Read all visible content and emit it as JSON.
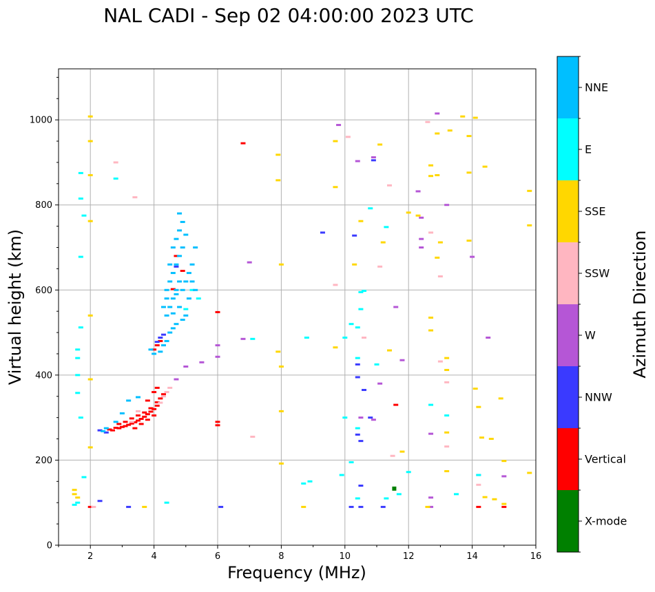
{
  "chart_data": {
    "type": "scatter",
    "title": "NAL CADI - Sep 02 04:00:00 2023 UTC",
    "xlabel": "Frequency (MHz)",
    "ylabel": "Virtual height (km)",
    "xlim": [
      1,
      16
    ],
    "ylim": [
      0,
      1120
    ],
    "xticks": [
      2,
      4,
      6,
      8,
      10,
      12,
      14,
      16
    ],
    "yticks": [
      0,
      200,
      400,
      600,
      800,
      1000
    ],
    "grid": true,
    "colorbar": {
      "label": "Azimuth Direction",
      "categories": [
        {
          "name": "X-mode",
          "color": "#008000"
        },
        {
          "name": "Vertical",
          "color": "#ff0000"
        },
        {
          "name": "NNW",
          "color": "#3a3aff"
        },
        {
          "name": "W",
          "color": "#b556d6"
        },
        {
          "name": "SSW",
          "color": "#ffb6c1"
        },
        {
          "name": "SSE",
          "color": "#ffd700"
        },
        {
          "name": "E",
          "color": "#00ffff"
        },
        {
          "name": "NNE",
          "color": "#00bfff"
        }
      ]
    },
    "series": [
      {
        "name": "X-mode",
        "points": [
          [
            11.55,
            133
          ]
        ]
      },
      {
        "name": "Vertical",
        "points": [
          [
            2.6,
            272
          ],
          [
            2.7,
            270
          ],
          [
            2.8,
            276
          ],
          [
            2.9,
            275
          ],
          [
            3.0,
            278
          ],
          [
            3.1,
            280
          ],
          [
            3.2,
            283
          ],
          [
            3.3,
            286
          ],
          [
            3.4,
            289
          ],
          [
            3.5,
            293
          ],
          [
            3.6,
            297
          ],
          [
            3.7,
            302
          ],
          [
            3.8,
            308
          ],
          [
            3.9,
            314
          ],
          [
            4.0,
            320
          ],
          [
            4.1,
            328
          ],
          [
            2.9,
            285
          ],
          [
            3.1,
            290
          ],
          [
            3.3,
            298
          ],
          [
            3.5,
            305
          ],
          [
            3.7,
            312
          ],
          [
            3.9,
            322
          ],
          [
            4.1,
            336
          ],
          [
            3.4,
            275
          ],
          [
            3.6,
            285
          ],
          [
            3.8,
            295
          ],
          [
            4.0,
            305
          ],
          [
            4.2,
            345
          ],
          [
            4.0,
            360
          ],
          [
            3.8,
            340
          ],
          [
            4.1,
            370
          ],
          [
            4.3,
            355
          ],
          [
            4.0,
            460
          ],
          [
            4.1,
            470
          ],
          [
            4.2,
            480
          ],
          [
            4.7,
            680
          ],
          [
            4.9,
            645
          ],
          [
            4.6,
            602
          ],
          [
            6.0,
            548
          ],
          [
            6.0,
            290
          ],
          [
            6.0,
            282
          ],
          [
            6.8,
            945
          ],
          [
            15.0,
            90
          ],
          [
            14.2,
            90
          ],
          [
            2.0,
            90
          ],
          [
            11.6,
            330
          ]
        ]
      },
      {
        "name": "NNW",
        "points": [
          [
            2.3,
            270
          ],
          [
            2.5,
            265
          ],
          [
            3.2,
            90
          ],
          [
            2.3,
            104
          ],
          [
            4.1,
            478
          ],
          [
            4.2,
            488
          ],
          [
            4.3,
            495
          ],
          [
            4.7,
            655
          ],
          [
            9.3,
            735
          ],
          [
            10.3,
            728
          ],
          [
            10.4,
            425
          ],
          [
            10.5,
            245
          ],
          [
            10.4,
            395
          ],
          [
            10.6,
            365
          ],
          [
            10.9,
            905
          ],
          [
            10.4,
            260
          ],
          [
            10.8,
            300
          ],
          [
            10.5,
            140
          ],
          [
            10.2,
            90
          ],
          [
            10.5,
            90
          ],
          [
            11.2,
            90
          ],
          [
            6.1,
            90
          ]
        ]
      },
      {
        "name": "W",
        "points": [
          [
            4.7,
            390
          ],
          [
            5.0,
            420
          ],
          [
            5.5,
            430
          ],
          [
            6.0,
            470
          ],
          [
            7.0,
            665
          ],
          [
            6.8,
            485
          ],
          [
            6.0,
            443
          ],
          [
            9.8,
            988
          ],
          [
            10.4,
            903
          ],
          [
            10.9,
            912
          ],
          [
            11.1,
            380
          ],
          [
            11.6,
            560
          ],
          [
            11.8,
            435
          ],
          [
            12.3,
            832
          ],
          [
            12.4,
            770
          ],
          [
            12.4,
            720
          ],
          [
            12.4,
            700
          ],
          [
            12.7,
            262
          ],
          [
            12.7,
            112
          ],
          [
            12.9,
            1015
          ],
          [
            13.2,
            800
          ],
          [
            14.0,
            678
          ],
          [
            14.2,
            165
          ],
          [
            14.5,
            488
          ],
          [
            15.0,
            162
          ],
          [
            12.7,
            90
          ],
          [
            10.5,
            300
          ],
          [
            10.9,
            295
          ]
        ]
      },
      {
        "name": "SSW",
        "points": [
          [
            4.4,
            360
          ],
          [
            4.5,
            370
          ],
          [
            4.3,
            350
          ],
          [
            4.2,
            335
          ],
          [
            3.5,
            315
          ],
          [
            3.3,
            290
          ],
          [
            2.1,
            90
          ],
          [
            2.8,
            900
          ],
          [
            3.4,
            818
          ],
          [
            7.1,
            255
          ],
          [
            9.7,
            612
          ],
          [
            10.1,
            960
          ],
          [
            10.6,
            488
          ],
          [
            11.4,
            846
          ],
          [
            11.1,
            655
          ],
          [
            12.6,
            995
          ],
          [
            12.7,
            735
          ],
          [
            13.0,
            432
          ],
          [
            13.2,
            383
          ],
          [
            13.2,
            232
          ],
          [
            14.2,
            142
          ],
          [
            13.0,
            632
          ],
          [
            11.5,
            210
          ]
        ]
      },
      {
        "name": "SSE",
        "points": [
          [
            2.0,
            1008
          ],
          [
            2.0,
            950
          ],
          [
            2.0,
            870
          ],
          [
            2.0,
            762
          ],
          [
            2.0,
            540
          ],
          [
            2.0,
            390
          ],
          [
            2.0,
            230
          ],
          [
            1.5,
            120
          ],
          [
            1.6,
            112
          ],
          [
            1.5,
            130
          ],
          [
            3.7,
            90
          ],
          [
            7.9,
            918
          ],
          [
            7.9,
            858
          ],
          [
            8.0,
            660
          ],
          [
            7.9,
            455
          ],
          [
            8.0,
            420
          ],
          [
            8.0,
            315
          ],
          [
            8.0,
            192
          ],
          [
            9.7,
            950
          ],
          [
            9.7,
            842
          ],
          [
            9.7,
            465
          ],
          [
            10.3,
            660
          ],
          [
            10.5,
            762
          ],
          [
            11.1,
            942
          ],
          [
            11.2,
            712
          ],
          [
            11.4,
            458
          ],
          [
            12.0,
            782
          ],
          [
            12.3,
            775
          ],
          [
            12.7,
            893
          ],
          [
            12.7,
            868
          ],
          [
            12.9,
            968
          ],
          [
            12.9,
            870
          ],
          [
            13.0,
            712
          ],
          [
            12.9,
            676
          ],
          [
            12.7,
            535
          ],
          [
            12.7,
            505
          ],
          [
            13.2,
            440
          ],
          [
            13.2,
            412
          ],
          [
            13.2,
            265
          ],
          [
            13.2,
            174
          ],
          [
            13.3,
            975
          ],
          [
            13.7,
            1008
          ],
          [
            13.9,
            962
          ],
          [
            13.9,
            876
          ],
          [
            13.9,
            716
          ],
          [
            14.1,
            1005
          ],
          [
            14.4,
            890
          ],
          [
            14.1,
            368
          ],
          [
            14.2,
            325
          ],
          [
            14.9,
            345
          ],
          [
            14.3,
            253
          ],
          [
            14.6,
            250
          ],
          [
            14.4,
            113
          ],
          [
            14.7,
            108
          ],
          [
            15.0,
            97
          ],
          [
            15.0,
            198
          ],
          [
            15.8,
            833
          ],
          [
            15.8,
            752
          ],
          [
            15.8,
            170
          ],
          [
            11.8,
            220
          ],
          [
            12.6,
            90
          ],
          [
            8.7,
            90
          ]
        ]
      },
      {
        "name": "E",
        "points": [
          [
            1.7,
            875
          ],
          [
            1.7,
            815
          ],
          [
            1.8,
            775
          ],
          [
            1.7,
            678
          ],
          [
            1.7,
            512
          ],
          [
            1.6,
            460
          ],
          [
            1.6,
            440
          ],
          [
            1.6,
            400
          ],
          [
            1.6,
            358
          ],
          [
            1.7,
            300
          ],
          [
            1.5,
            95
          ],
          [
            1.6,
            100
          ],
          [
            1.8,
            160
          ],
          [
            2.8,
            862
          ],
          [
            4.4,
            100
          ],
          [
            5.0,
            555
          ],
          [
            5.2,
            600
          ],
          [
            5.4,
            580
          ],
          [
            7.1,
            485
          ],
          [
            8.7,
            145
          ],
          [
            8.9,
            150
          ],
          [
            8.8,
            488
          ],
          [
            10.0,
            488
          ],
          [
            10.0,
            300
          ],
          [
            10.2,
            520
          ],
          [
            10.4,
            512
          ],
          [
            10.4,
            440
          ],
          [
            10.4,
            275
          ],
          [
            10.2,
            195
          ],
          [
            10.5,
            555
          ],
          [
            10.5,
            595
          ],
          [
            10.6,
            598
          ],
          [
            10.8,
            792
          ],
          [
            10.4,
            110
          ],
          [
            11.0,
            425
          ],
          [
            11.3,
            748
          ],
          [
            11.3,
            110
          ],
          [
            11.7,
            120
          ],
          [
            12.0,
            172
          ],
          [
            13.2,
            305
          ],
          [
            13.5,
            120
          ],
          [
            14.2,
            165
          ],
          [
            12.7,
            330
          ],
          [
            9.9,
            165
          ]
        ]
      },
      {
        "name": "NNE",
        "points": [
          [
            4.4,
            540
          ],
          [
            4.5,
            560
          ],
          [
            4.6,
            580
          ],
          [
            4.7,
            600
          ],
          [
            4.5,
            620
          ],
          [
            4.6,
            640
          ],
          [
            4.7,
            660
          ],
          [
            4.8,
            680
          ],
          [
            4.6,
            700
          ],
          [
            4.7,
            720
          ],
          [
            4.8,
            740
          ],
          [
            4.9,
            760
          ],
          [
            4.8,
            780
          ],
          [
            4.7,
            520
          ],
          [
            4.5,
            500
          ],
          [
            4.4,
            480
          ],
          [
            4.3,
            470
          ],
          [
            4.2,
            455
          ],
          [
            3.9,
            460
          ],
          [
            4.0,
            450
          ],
          [
            4.6,
            510
          ],
          [
            4.8,
            560
          ],
          [
            4.9,
            600
          ],
          [
            5.0,
            620
          ],
          [
            5.1,
            640
          ],
          [
            5.2,
            660
          ],
          [
            5.3,
            700
          ],
          [
            5.1,
            580
          ],
          [
            5.0,
            540
          ],
          [
            4.4,
            600
          ],
          [
            4.4,
            580
          ],
          [
            4.3,
            560
          ],
          [
            4.5,
            660
          ],
          [
            4.7,
            590
          ],
          [
            4.8,
            620
          ],
          [
            4.9,
            700
          ],
          [
            5.0,
            730
          ],
          [
            5.2,
            620
          ],
          [
            5.3,
            600
          ],
          [
            4.6,
            545
          ],
          [
            4.9,
            530
          ],
          [
            3.5,
            348
          ],
          [
            3.2,
            340
          ],
          [
            3.0,
            310
          ],
          [
            2.8,
            290
          ],
          [
            2.5,
            275
          ],
          [
            2.4,
            268
          ]
        ]
      }
    ]
  }
}
